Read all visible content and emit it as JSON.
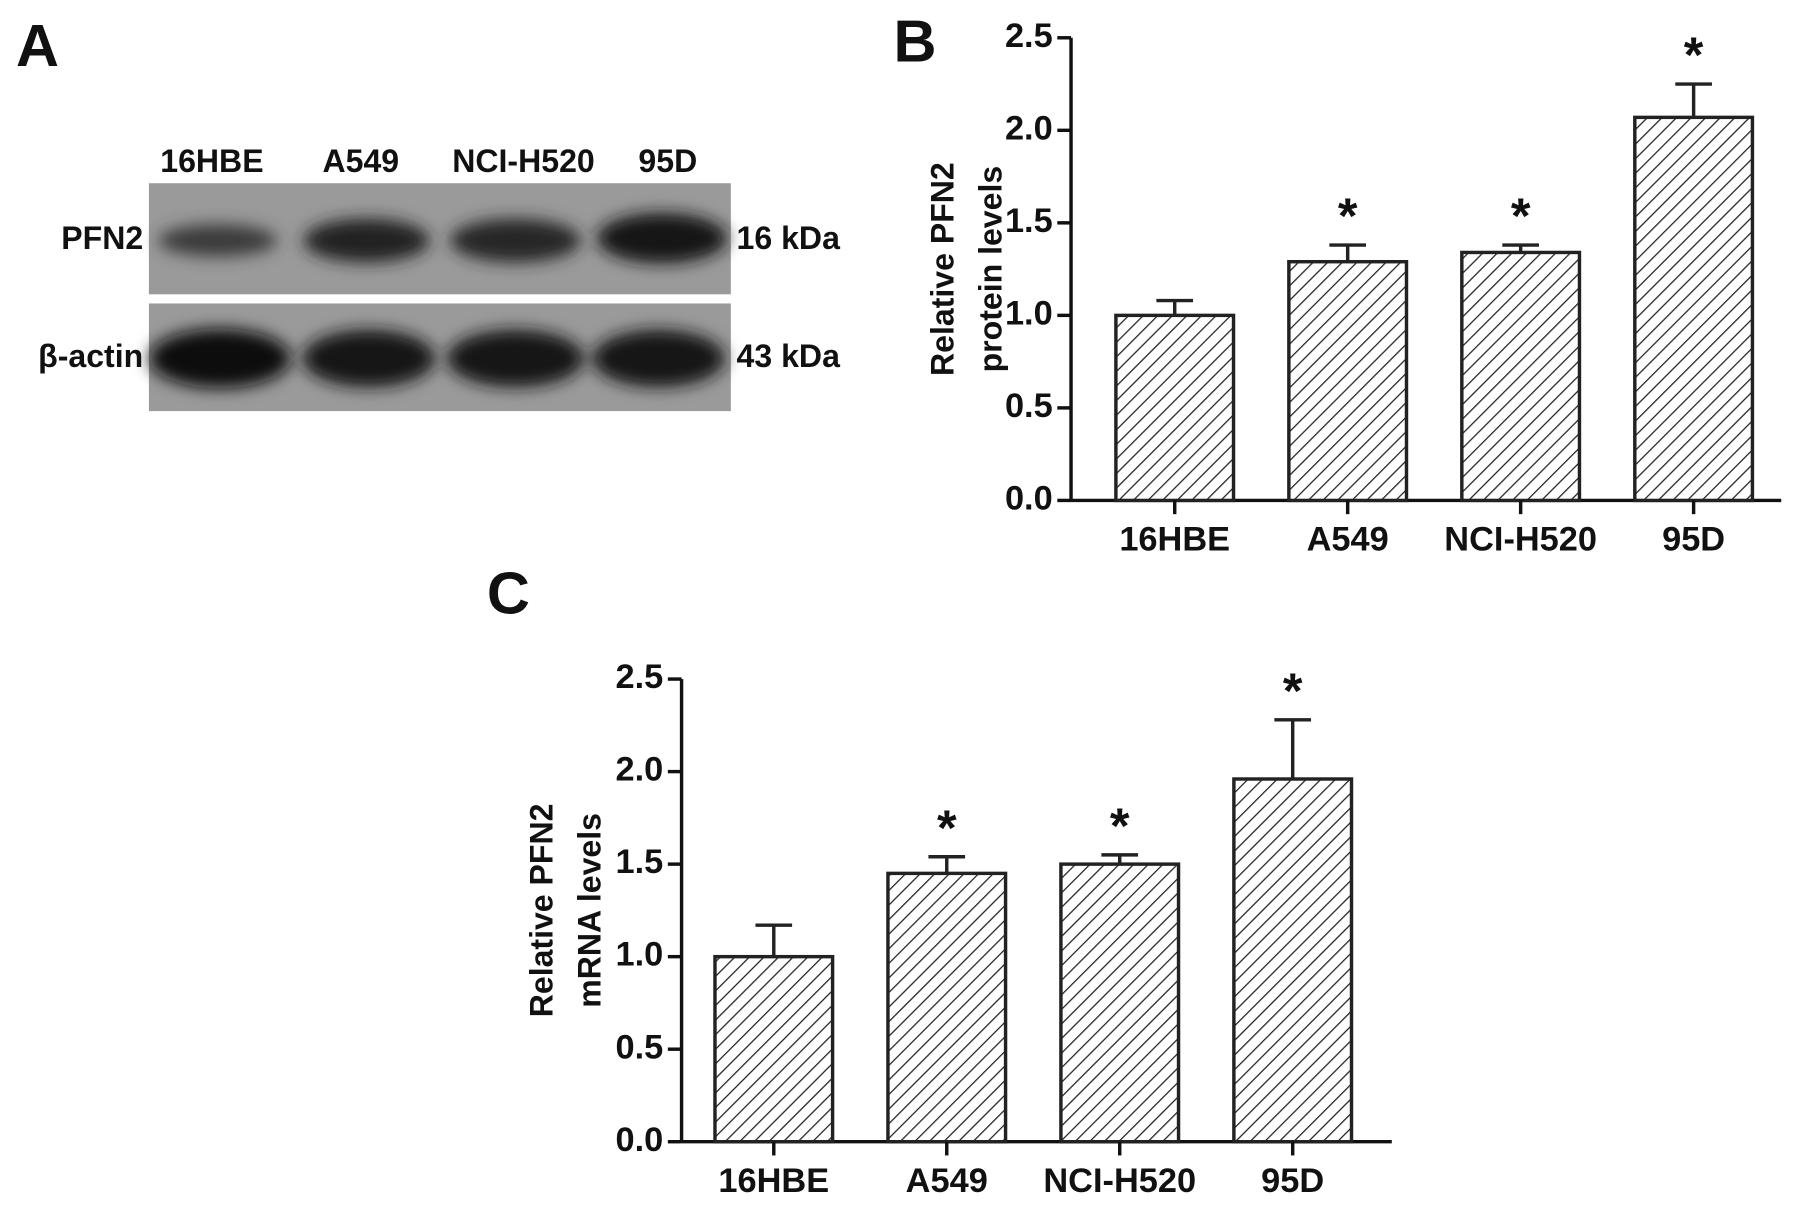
{
  "blot": {
    "panel_label": "A",
    "lanes": [
      "16HBE",
      "A549",
      "NCI-H520",
      "95D"
    ],
    "rows": [
      "PFN2",
      "β-actin"
    ],
    "sizes": [
      "16 kDa",
      "43 kDa"
    ]
  },
  "chart_data": [
    {
      "type": "bar",
      "panel_label": "B",
      "y_label": [
        "Relative PFN2",
        "protein levels"
      ],
      "categories": [
        "16HBE",
        "A549",
        "NCI-H520",
        "95D"
      ],
      "values": [
        1.0,
        1.29,
        1.34,
        2.07
      ],
      "errors": [
        0.08,
        0.09,
        0.04,
        0.18
      ],
      "annotations": [
        null,
        "*",
        "*",
        "*"
      ],
      "ylim": [
        0,
        2.5
      ],
      "yticks": [
        {
          "value": 0,
          "label": "0.0"
        },
        0.5,
        {
          "value": 1,
          "label": "1.0"
        },
        1.5,
        {
          "value": 2,
          "label": "2.0"
        },
        2.5
      ],
      "color": "#222222"
    },
    {
      "type": "bar",
      "panel_label": "C",
      "y_label": [
        "Relative PFN2",
        "mRNA levels"
      ],
      "categories": [
        "16HBE",
        "A549",
        "NCI-H520",
        "95D"
      ],
      "values": [
        1.0,
        1.45,
        1.5,
        1.96
      ],
      "errors": [
        0.17,
        0.09,
        0.05,
        0.32
      ],
      "annotations": [
        null,
        "*",
        "*",
        "*"
      ],
      "ylim": [
        0,
        2.5
      ],
      "yticks": [
        {
          "value": 0,
          "label": "0.0"
        },
        0.5,
        {
          "value": 1,
          "label": "1.0"
        },
        1.5,
        {
          "value": 2,
          "label": "2.0"
        },
        2.5
      ],
      "color": "#222222"
    }
  ]
}
